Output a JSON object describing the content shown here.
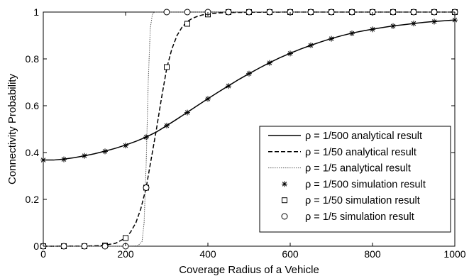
{
  "chart_data": {
    "type": "line",
    "xlabel": "Coverage Radius of a Vehicle",
    "ylabel": "Connectivity Probability",
    "xlim": [
      0,
      1000
    ],
    "ylim": [
      0,
      1
    ],
    "x_ticks": [
      "0",
      "200",
      "400",
      "600",
      "800",
      "1000"
    ],
    "y_ticks": [
      "0",
      "0.2",
      "0.4",
      "0.6",
      "0.8",
      "1"
    ],
    "grid": false,
    "legend_position": "bottom-right",
    "series": [
      {
        "name": "ρ = 1/500 analytical result",
        "kind": "line",
        "style": "solid",
        "color": "#000000",
        "x": [
          0,
          25,
          50,
          75,
          100,
          125,
          150,
          175,
          200,
          225,
          250,
          275,
          300,
          325,
          350,
          375,
          400,
          425,
          450,
          475,
          500,
          525,
          550,
          575,
          600,
          625,
          650,
          675,
          700,
          725,
          750,
          775,
          800,
          825,
          850,
          875,
          900,
          925,
          950,
          975,
          1000
        ],
        "y": [
          0.368,
          0.368,
          0.372,
          0.378,
          0.386,
          0.395,
          0.406,
          0.418,
          0.432,
          0.448,
          0.466,
          0.488,
          0.515,
          0.543,
          0.572,
          0.601,
          0.63,
          0.658,
          0.685,
          0.712,
          0.737,
          0.761,
          0.784,
          0.805,
          0.824,
          0.842,
          0.858,
          0.873,
          0.887,
          0.899,
          0.91,
          0.919,
          0.927,
          0.934,
          0.941,
          0.946,
          0.951,
          0.956,
          0.96,
          0.963,
          0.966
        ]
      },
      {
        "name": "ρ = 1/50 analytical result",
        "kind": "line",
        "style": "dashed",
        "color": "#000000",
        "x": [
          0,
          100,
          130,
          150,
          175,
          200,
          212,
          225,
          237,
          250,
          262,
          275,
          287,
          300,
          312,
          325,
          337,
          350,
          362,
          375,
          387,
          400,
          425,
          450,
          500,
          600,
          800,
          1000
        ],
        "y": [
          0,
          0.0005,
          0.002,
          0.005,
          0.012,
          0.035,
          0.06,
          0.1,
          0.16,
          0.25,
          0.37,
          0.5,
          0.63,
          0.76,
          0.84,
          0.9,
          0.935,
          0.96,
          0.973,
          0.982,
          0.988,
          0.992,
          0.996,
          0.998,
          0.999,
          1,
          1,
          1
        ]
      },
      {
        "name": "ρ = 1/5 analytical result",
        "kind": "line",
        "style": "dotted",
        "color": "#555555",
        "x": [
          0,
          200,
          230,
          240,
          245,
          250,
          255,
          260,
          265,
          270,
          1000
        ],
        "y": [
          0,
          0,
          0.002,
          0.02,
          0.1,
          0.35,
          0.7,
          0.93,
          0.99,
          1,
          1
        ]
      },
      {
        "name": "ρ = 1/500 simulation result",
        "kind": "marker",
        "marker": "star",
        "color": "#000000",
        "x": [
          0,
          50,
          100,
          150,
          200,
          250,
          300,
          350,
          400,
          450,
          500,
          550,
          600,
          650,
          700,
          750,
          800,
          850,
          900,
          950,
          1000
        ],
        "y": [
          0.368,
          0.371,
          0.386,
          0.405,
          0.43,
          0.466,
          0.515,
          0.571,
          0.629,
          0.684,
          0.737,
          0.783,
          0.823,
          0.858,
          0.886,
          0.909,
          0.926,
          0.94,
          0.951,
          0.959,
          0.966
        ]
      },
      {
        "name": "ρ = 1/50 simulation result",
        "kind": "marker",
        "marker": "square",
        "color": "#000000",
        "x": [
          0,
          50,
          100,
          150,
          200,
          250,
          300,
          350,
          400,
          450,
          500,
          550,
          600,
          650,
          700,
          750,
          800,
          850,
          900,
          950,
          1000
        ],
        "y": [
          0,
          0,
          0,
          0.003,
          0.035,
          0.25,
          0.765,
          0.95,
          0.99,
          1,
          1,
          1,
          1,
          1,
          1,
          1,
          1,
          1,
          1,
          1,
          1
        ]
      },
      {
        "name": "ρ = 1/5 simulation result",
        "kind": "marker",
        "marker": "circle",
        "color": "#000000",
        "x": [
          0,
          50,
          100,
          150,
          200,
          250,
          300,
          350,
          400,
          450,
          500,
          550,
          600,
          650,
          700,
          750,
          800,
          850,
          900,
          950,
          1000
        ],
        "y": [
          0,
          0,
          0,
          0,
          0,
          0.25,
          1,
          1,
          1,
          1,
          1,
          1,
          1,
          1,
          1,
          1,
          1,
          1,
          1,
          1,
          1
        ]
      }
    ]
  }
}
